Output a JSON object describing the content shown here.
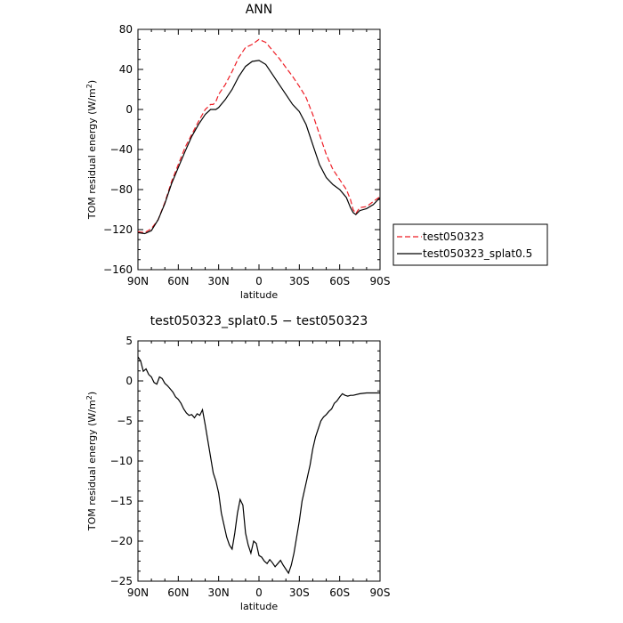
{
  "chart_data": [
    {
      "type": "line",
      "title": "ANN",
      "xlabel": "latitude",
      "ylabel": "TOM residual energy (W/m²)",
      "ylabel_base": "TOM residual energy (W/m",
      "ylabel_sup": "2",
      "ylabel_end": ")",
      "xlim": [
        90,
        -90
      ],
      "ylim": [
        -160,
        80
      ],
      "xticks": [
        90,
        60,
        30,
        0,
        -30,
        -60,
        -90
      ],
      "xticklabels": [
        "90N",
        "60N",
        "30N",
        "0",
        "30S",
        "60S",
        "90S"
      ],
      "yticks": [
        80,
        40,
        0,
        -40,
        -80,
        -120,
        -160
      ],
      "yticklabels": [
        "80",
        "40",
        "0",
        "−40",
        "−80",
        "−120",
        "−160"
      ],
      "legend_position": "right",
      "x": [
        90,
        85,
        80,
        75,
        70,
        65,
        60,
        55,
        50,
        45,
        40,
        36,
        34,
        32,
        30,
        25,
        20,
        15,
        10,
        5,
        0,
        -5,
        -10,
        -15,
        -20,
        -25,
        -30,
        -35,
        -40,
        -45,
        -50,
        -55,
        -60,
        -65,
        -68,
        -70,
        -72,
        -75,
        -80,
        -85,
        -90
      ],
      "series": [
        {
          "name": "test050323",
          "color": "#ee1c24",
          "dash": "6,3",
          "values": [
            -122,
            -123,
            -119,
            -110,
            -93,
            -72,
            -55,
            -38,
            -25,
            -12,
            0,
            5,
            5,
            8,
            15,
            25,
            38,
            52,
            62,
            65,
            70,
            67,
            59,
            51,
            42,
            33,
            23,
            12,
            -5,
            -25,
            -45,
            -60,
            -70,
            -80,
            -90,
            -100,
            -104,
            -98,
            -97,
            -92,
            -87
          ]
        },
        {
          "name": "test050323_splat0.5",
          "color": "#000000",
          "dash": "",
          "values": [
            -123,
            -124,
            -121,
            -110,
            -94,
            -74,
            -58,
            -42,
            -27,
            -15,
            -5,
            0,
            0,
            0,
            2,
            10,
            20,
            33,
            43,
            48,
            49,
            45,
            35,
            25,
            15,
            5,
            -2,
            -15,
            -35,
            -55,
            -68,
            -75,
            -80,
            -88,
            -98,
            -103,
            -105,
            -101,
            -99,
            -95,
            -88
          ]
        }
      ]
    },
    {
      "type": "line",
      "title": "test050323_splat0.5 − test050323",
      "xlabel": "latitude",
      "ylabel": "TOM residual energy (W/m²)",
      "ylabel_base": "TOM residual energy (W/m",
      "ylabel_sup": "2",
      "ylabel_end": ")",
      "xlim": [
        90,
        -90
      ],
      "ylim": [
        -25,
        5
      ],
      "xticks": [
        90,
        60,
        30,
        0,
        -30,
        -60,
        -90
      ],
      "xticklabels": [
        "90N",
        "60N",
        "30N",
        "0",
        "30S",
        "60S",
        "90S"
      ],
      "yticks": [
        5,
        0,
        -5,
        -10,
        -15,
        -20,
        -25
      ],
      "yticklabels": [
        "5",
        "0",
        "−5",
        "−10",
        "−15",
        "−20",
        "−25"
      ],
      "x": [
        90,
        88,
        86,
        84,
        82,
        80,
        78,
        76,
        74,
        72,
        70,
        68,
        66,
        64,
        62,
        60,
        58,
        56,
        54,
        52,
        50,
        48,
        46,
        44,
        42,
        40,
        38,
        36,
        34,
        32,
        30,
        28,
        26,
        24,
        22,
        20,
        18,
        16,
        14,
        12,
        10,
        8,
        6,
        4,
        2,
        0,
        -2,
        -4,
        -6,
        -8,
        -10,
        -12,
        -14,
        -16,
        -18,
        -20,
        -22,
        -24,
        -26,
        -28,
        -30,
        -32,
        -34,
        -36,
        -38,
        -40,
        -42,
        -44,
        -46,
        -48,
        -50,
        -52,
        -54,
        -56,
        -58,
        -60,
        -62,
        -64,
        -66,
        -68,
        -70,
        -75,
        -80,
        -85,
        -90
      ],
      "series": [
        {
          "name": "",
          "color": "#000000",
          "dash": "",
          "values": [
            3,
            2.5,
            1.2,
            1.5,
            0.8,
            0.5,
            -0.2,
            -0.4,
            0.5,
            0.3,
            -0.3,
            -0.6,
            -1.0,
            -1.4,
            -2.0,
            -2.3,
            -2.8,
            -3.5,
            -4.0,
            -4.3,
            -4.2,
            -4.6,
            -4.1,
            -4.3,
            -3.6,
            -5.5,
            -7.5,
            -9.5,
            -11.5,
            -12.5,
            -14.0,
            -16.5,
            -18.0,
            -19.5,
            -20.5,
            -21.0,
            -19.0,
            -16.5,
            -14.8,
            -15.5,
            -19.0,
            -20.5,
            -21.5,
            -20.0,
            -20.3,
            -21.8,
            -22.0,
            -22.5,
            -22.8,
            -22.3,
            -22.7,
            -23.2,
            -22.8,
            -22.4,
            -23.0,
            -23.5,
            -24.0,
            -23.0,
            -21.5,
            -19.5,
            -17.5,
            -15.0,
            -13.5,
            -12.0,
            -10.5,
            -8.5,
            -7.0,
            -6.0,
            -5.0,
            -4.5,
            -4.2,
            -3.8,
            -3.5,
            -2.8,
            -2.5,
            -2.0,
            -1.6,
            -1.8,
            -1.9,
            -1.8,
            -1.8,
            -1.6,
            -1.5,
            -1.5,
            -1.5
          ]
        }
      ]
    }
  ]
}
